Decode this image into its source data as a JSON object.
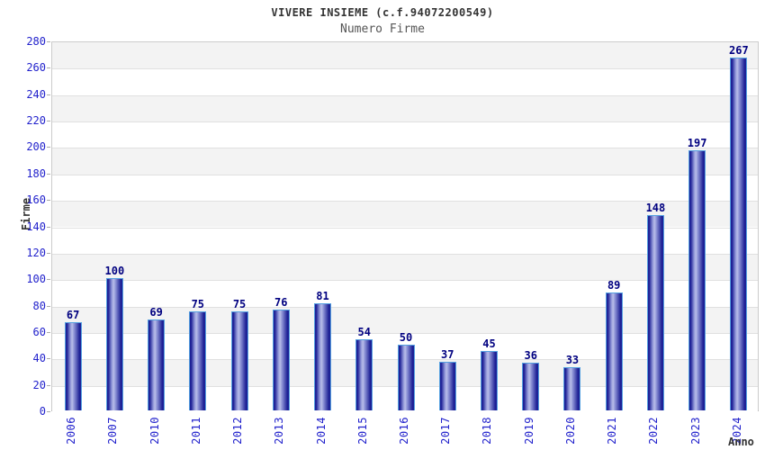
{
  "chart_data": {
    "type": "bar",
    "title": "VIVERE INSIEME (c.f.94072200549)",
    "subtitle": "Numero Firme",
    "xlabel": "Anno",
    "ylabel": "Firme",
    "categories": [
      "2006",
      "2007",
      "2010",
      "2011",
      "2012",
      "2013",
      "2014",
      "2015",
      "2016",
      "2017",
      "2018",
      "2019",
      "2020",
      "2021",
      "2022",
      "2023",
      "2024"
    ],
    "values": [
      67,
      100,
      69,
      75,
      75,
      76,
      81,
      54,
      50,
      37,
      45,
      36,
      33,
      89,
      148,
      197,
      267
    ],
    "ylim": [
      0,
      280
    ],
    "ytick_step": 20,
    "grid": true,
    "legend_position": "none",
    "colors": {
      "tick_label": "#2222cc",
      "value_label": "#000080",
      "bar_border": "#55a0e0",
      "bar_dark": "#1e2196",
      "bar_mid": "#8d93d6",
      "bar_light": "#b9bee9",
      "band_gray": "#f3f3f3",
      "band_white": "#ffffff",
      "grid_line": "#e0e0e0",
      "plot_border": "#cccccc",
      "axis_line": "#aaaaaa",
      "title_color": "#333333",
      "subtitle_color": "#555555"
    }
  }
}
